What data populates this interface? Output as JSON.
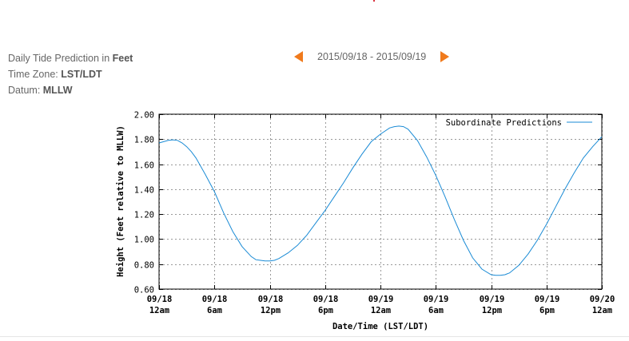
{
  "header": {
    "prediction_prefix": "Daily Tide Prediction in ",
    "prediction_unit": "Feet",
    "timezone_prefix": "Time Zone: ",
    "timezone_value": "LST/LDT",
    "datum_prefix": "Datum: ",
    "datum_value": "MLLW"
  },
  "nav": {
    "date_range": "2015/09/18 - 2015/09/19"
  },
  "colors": {
    "series": "#1a8bd5",
    "arrow": "#f07a1c",
    "grid": "#999999"
  },
  "chart_data": {
    "type": "line",
    "xlabel": "Date/Time (LST/LDT)",
    "ylabel": "Height (Feet relative to MLLW)",
    "xlim": [
      0,
      48
    ],
    "ylim": [
      0.6,
      2.0
    ],
    "grid": true,
    "legend_position": "top-right",
    "y_ticks": [
      "0.60",
      "0.80",
      "1.00",
      "1.20",
      "1.40",
      "1.60",
      "1.80",
      "2.00"
    ],
    "x_ticks": [
      {
        "hour": 0,
        "date": "09/18",
        "time": "12am"
      },
      {
        "hour": 6,
        "date": "09/18",
        "time": "6am"
      },
      {
        "hour": 12,
        "date": "09/18",
        "time": "12pm"
      },
      {
        "hour": 18,
        "date": "09/18",
        "time": "6pm"
      },
      {
        "hour": 24,
        "date": "09/19",
        "time": "12am"
      },
      {
        "hour": 30,
        "date": "09/19",
        "time": "6am"
      },
      {
        "hour": 36,
        "date": "09/19",
        "time": "12pm"
      },
      {
        "hour": 42,
        "date": "09/19",
        "time": "6pm"
      },
      {
        "hour": 48,
        "date": "09/20",
        "time": "12am"
      }
    ],
    "series": [
      {
        "name": "Subordinate Predictions",
        "x": [
          0,
          0.5,
          1,
          1.5,
          2,
          2.5,
          3,
          3.5,
          4,
          5,
          6,
          7,
          8,
          9,
          10,
          10.5,
          11,
          11.5,
          12,
          12.5,
          13,
          14,
          15,
          16,
          17,
          18,
          19,
          20,
          21,
          22,
          23,
          24,
          25,
          25.5,
          26,
          26.5,
          27,
          28,
          29,
          30,
          31,
          32,
          33,
          34,
          35,
          36,
          36.5,
          37,
          37.5,
          38,
          39,
          40,
          41,
          42,
          43,
          44,
          45,
          46,
          47,
          48
        ],
        "y": [
          1.77,
          1.78,
          1.79,
          1.795,
          1.79,
          1.77,
          1.74,
          1.7,
          1.65,
          1.52,
          1.38,
          1.21,
          1.06,
          0.94,
          0.86,
          0.835,
          0.83,
          0.825,
          0.825,
          0.83,
          0.845,
          0.89,
          0.95,
          1.03,
          1.13,
          1.23,
          1.34,
          1.45,
          1.57,
          1.68,
          1.78,
          1.84,
          1.89,
          1.9,
          1.905,
          1.9,
          1.88,
          1.79,
          1.66,
          1.51,
          1.34,
          1.16,
          0.99,
          0.85,
          0.76,
          0.715,
          0.71,
          0.71,
          0.715,
          0.73,
          0.79,
          0.88,
          0.99,
          1.12,
          1.26,
          1.4,
          1.53,
          1.65,
          1.74,
          1.82
        ]
      }
    ]
  }
}
